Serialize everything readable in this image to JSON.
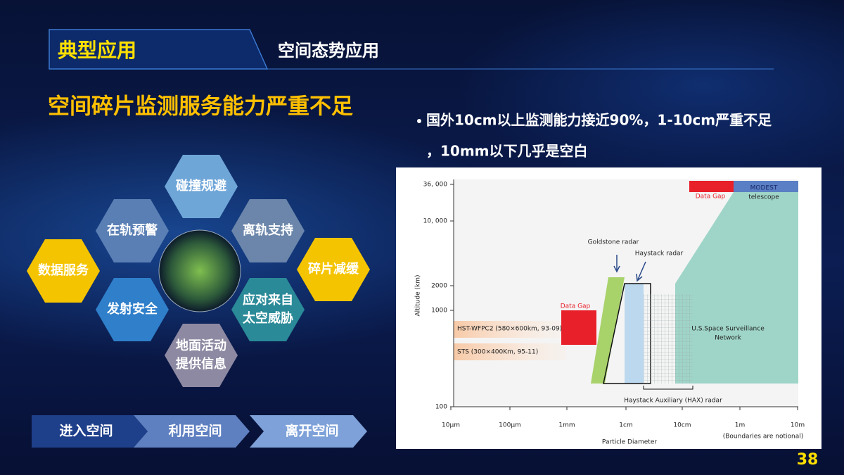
{
  "header": {
    "tag": "典型应用",
    "section": "空间态势应用"
  },
  "headline": "空间碎片监测服务能力严重不足",
  "bullet": [
    "国外10cm以上监测能力接近90%，1-10cm严重不足",
    "，10mm以下几乎是空白"
  ],
  "hexagons": [
    {
      "lines": [
        "碰撞规避"
      ]
    },
    {
      "lines": [
        "在轨预警"
      ]
    },
    {
      "lines": [
        "离轨支持"
      ]
    },
    {
      "lines": [
        "数据服务"
      ]
    },
    {
      "lines": [
        "碎片减缓"
      ]
    },
    {
      "lines": [
        "发射安全"
      ]
    },
    {
      "lines": [
        "应对来自",
        "太空威胁"
      ]
    },
    {
      "lines": [
        "地面活动",
        "提供信息"
      ]
    }
  ],
  "phases": [
    "进入空间",
    "利用空间",
    "离开空间"
  ],
  "figure": {
    "y_axis_label": "Altitude (km)",
    "y_ticks": [
      "36, 000",
      "10, 000",
      "2000",
      "1000",
      "100"
    ],
    "x_ticks": [
      "10μm",
      "100μm",
      "1mm",
      "1cm",
      "10cm",
      "1m",
      "10m"
    ],
    "x_axis_label": "Particle Diameter",
    "note": "(Boundaries are notional)",
    "data_gap_top": "Data Gap",
    "modest": [
      "MODEST",
      "telescope"
    ],
    "goldstone": "Goldstone radar",
    "haystack": "Haystack radar",
    "data_gap_left": "Data Gap",
    "hst": "HST-WFPC2 (580×600km, 93-09)",
    "sts": "STS (300×400Km, 95-11)",
    "ssn": [
      "U.S.Space Surveillance",
      "Network"
    ],
    "hax": "Haystack Auxiliary (HAX) radar"
  },
  "page_number": "38"
}
